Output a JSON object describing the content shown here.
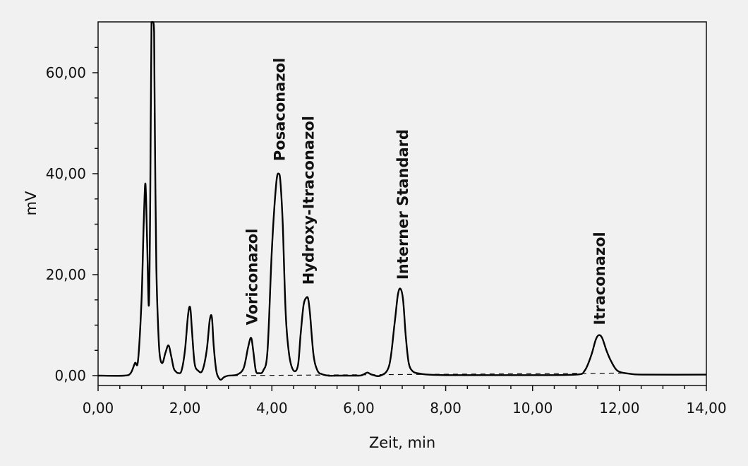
{
  "chart_data": {
    "type": "line",
    "xlabel": "Zeit, min",
    "ylabel": "mV",
    "xlim": [
      0,
      14
    ],
    "ylim": [
      -2,
      70
    ],
    "x_ticks": [
      {
        "value": 0,
        "label": "0,00"
      },
      {
        "value": 2,
        "label": "2,00"
      },
      {
        "value": 4,
        "label": "4,00"
      },
      {
        "value": 6,
        "label": "6,00"
      },
      {
        "value": 8,
        "label": "8,00"
      },
      {
        "value": 10,
        "label": "10,00"
      },
      {
        "value": 12,
        "label": "12,00"
      },
      {
        "value": 14,
        "label": "14,00"
      }
    ],
    "y_ticks": [
      {
        "value": 0,
        "label": "0,00"
      },
      {
        "value": 20,
        "label": "20,00"
      },
      {
        "value": 40,
        "label": "40,00"
      },
      {
        "value": 60,
        "label": "60,00"
      }
    ],
    "series": [
      {
        "x": [
          0,
          0.6,
          0.75,
          0.85,
          0.92,
          1.0,
          1.05,
          1.09,
          1.13,
          1.17,
          1.2,
          1.23,
          1.27,
          1.29,
          1.31,
          1.34,
          1.38,
          1.42,
          1.48,
          1.55,
          1.62,
          1.68,
          1.74,
          1.79,
          1.85,
          1.92,
          2.0,
          2.07,
          2.12,
          2.16,
          2.22,
          2.3,
          2.4,
          2.5,
          2.57,
          2.62,
          2.66,
          2.72,
          2.78,
          2.83,
          2.9,
          3.0,
          3.2,
          3.35,
          3.45,
          3.52,
          3.57,
          3.63,
          3.7,
          3.8,
          3.9,
          4.0,
          4.1,
          4.16,
          4.2,
          4.25,
          4.32,
          4.4,
          4.5,
          4.6,
          4.66,
          4.73,
          4.8,
          4.84,
          4.88,
          4.96,
          5.05,
          5.15,
          5.3,
          5.6,
          6.0,
          6.1,
          6.2,
          6.3,
          6.5,
          6.7,
          6.82,
          6.9,
          6.96,
          7.02,
          7.08,
          7.15,
          7.25,
          7.4,
          7.6,
          8.0,
          9.0,
          10.0,
          11.0,
          11.2,
          11.35,
          11.45,
          11.52,
          11.6,
          11.7,
          11.8,
          11.95,
          12.2,
          12.6,
          14.0
        ],
        "y": [
          0,
          0,
          0.5,
          2.5,
          3,
          15,
          30,
          38,
          26,
          14,
          35,
          70,
          70,
          68,
          45,
          22,
          10,
          4,
          2.5,
          4.5,
          6,
          4,
          1.5,
          0.8,
          0.5,
          1,
          5,
          12,
          13.5,
          9,
          2.5,
          1,
          1,
          5,
          11,
          11.5,
          6,
          1,
          -0.5,
          -0.8,
          -0.3,
          0,
          0.2,
          1.5,
          5.5,
          7.5,
          5,
          1,
          0.5,
          1,
          5,
          25,
          38,
          40,
          38,
          30,
          12,
          4,
          1,
          2,
          8,
          14,
          15.5,
          15,
          12,
          4,
          1,
          0.3,
          0,
          0,
          0,
          0.2,
          0.6,
          0.2,
          0,
          2,
          10,
          16,
          17.2,
          15,
          8,
          2.5,
          0.8,
          0.4,
          0.2,
          0.1,
          0.1,
          0.1,
          0.2,
          1,
          4,
          7,
          8,
          7.5,
          5,
          3,
          1,
          0.4,
          0.2,
          0.2
        ]
      }
    ],
    "baseline": {
      "x": [
        3.1,
        12.1
      ],
      "y": [
        0,
        0.5
      ]
    },
    "annotations": [
      {
        "text": "Voriconazol",
        "x": 3.55,
        "y": 10
      },
      {
        "text": "Posaconazol",
        "x": 4.18,
        "y": 42.5
      },
      {
        "text": "Hydroxy-Itraconazol",
        "x": 4.85,
        "y": 18
      },
      {
        "text": "Interner Standard",
        "x": 7.02,
        "y": 19
      },
      {
        "text": "Itraconazol",
        "x": 11.55,
        "y": 10
      }
    ]
  }
}
